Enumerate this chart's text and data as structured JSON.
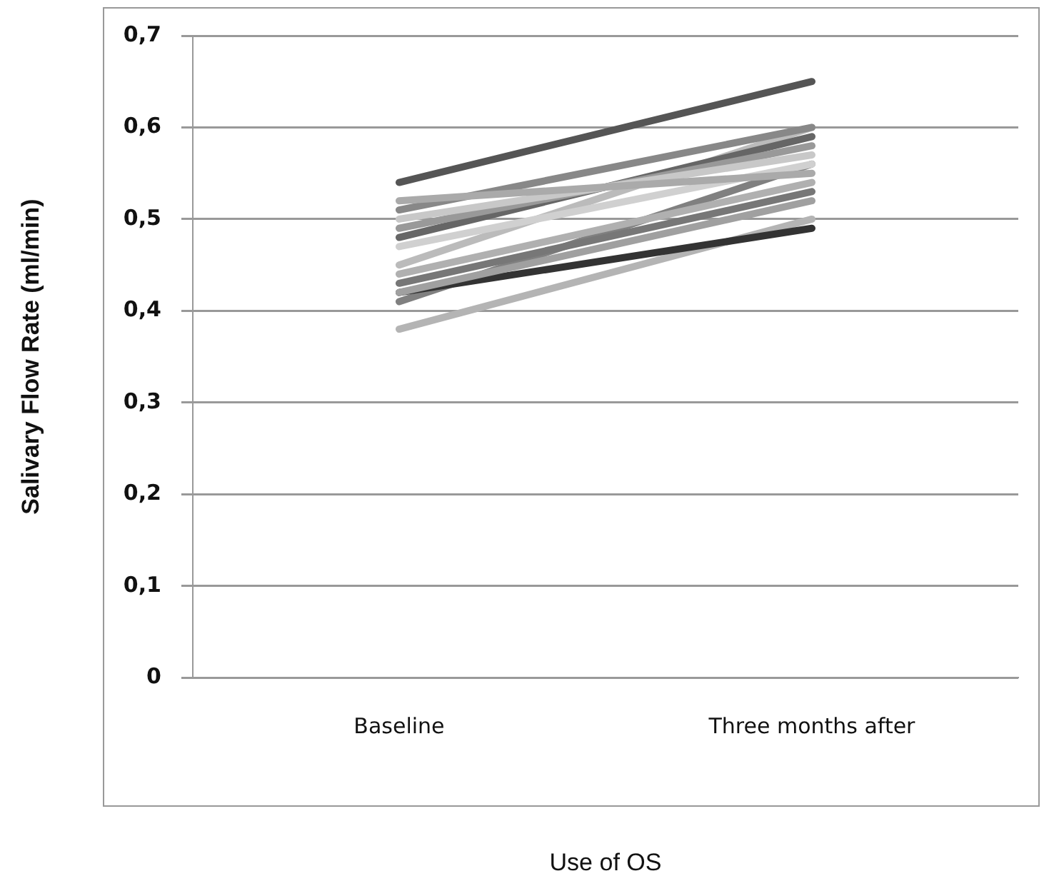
{
  "chart_data": {
    "type": "line",
    "xlabel": "Use of OS",
    "ylabel": "Salivary Flow Rate (ml/min)",
    "categories": [
      "Baseline",
      "Three months after"
    ],
    "series": [
      {
        "color": "#555555",
        "values": [
          0.54,
          0.65
        ]
      },
      {
        "color": "#aaaaaa",
        "values": [
          0.52,
          0.55
        ]
      },
      {
        "color": "#888888",
        "values": [
          0.51,
          0.6
        ]
      },
      {
        "color": "#c8c8c8",
        "values": [
          0.5,
          0.57
        ]
      },
      {
        "color": "#999999",
        "values": [
          0.49,
          0.58
        ]
      },
      {
        "color": "#666666",
        "values": [
          0.48,
          0.59
        ]
      },
      {
        "color": "#d0d0d0",
        "values": [
          0.47,
          0.56
        ]
      },
      {
        "color": "#bbbbbb",
        "values": [
          0.45,
          0.6
        ]
      },
      {
        "color": "#b0b0b0",
        "values": [
          0.44,
          0.54
        ]
      },
      {
        "color": "#777777",
        "values": [
          0.43,
          0.53
        ]
      },
      {
        "color": "#a0a0a0",
        "values": [
          0.42,
          0.52
        ]
      },
      {
        "color": "#333333",
        "values": [
          0.42,
          0.49
        ]
      },
      {
        "color": "#808080",
        "values": [
          0.41,
          0.56
        ]
      },
      {
        "color": "#b4b4b4",
        "values": [
          0.38,
          0.5
        ]
      }
    ],
    "ylim": [
      0,
      0.7
    ],
    "yticks": [
      {
        "value": 0,
        "label": "0"
      },
      {
        "value": 0.1,
        "label": "0,1"
      },
      {
        "value": 0.2,
        "label": "0,2"
      },
      {
        "value": 0.3,
        "label": "0,3"
      },
      {
        "value": 0.4,
        "label": "0,4"
      },
      {
        "value": 0.5,
        "label": "0,5"
      },
      {
        "value": 0.6,
        "label": "0,6"
      },
      {
        "value": 0.7,
        "label": "0,7"
      }
    ],
    "grid": "y",
    "legend": false,
    "marker": "none",
    "line_style": "solid"
  }
}
